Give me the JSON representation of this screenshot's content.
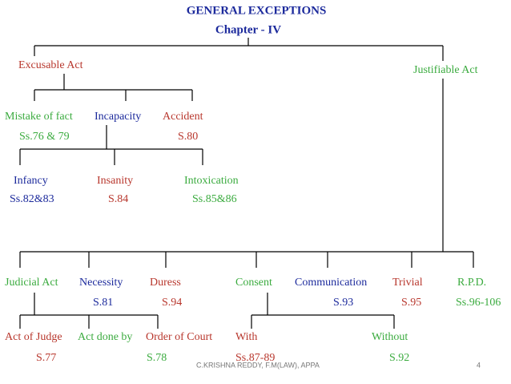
{
  "header": {
    "title": "GENERAL EXCEPTIONS",
    "subtitle": "Chapter - IV"
  },
  "nodes": [
    {
      "label": "Excusable Act"
    },
    {
      "label": "Justifiable Act"
    },
    {
      "label": "Mistake of fact",
      "section": "Ss.76 & 79"
    },
    {
      "label": "Incapacity"
    },
    {
      "label": "Accident",
      "section": "S.80"
    },
    {
      "label": "Infancy",
      "section": "Ss.82&83"
    },
    {
      "label": "Insanity",
      "section": "S.84"
    },
    {
      "label": "Intoxication",
      "section": "Ss.85&86"
    },
    {
      "label": "Judicial Act"
    },
    {
      "label": "Necessity",
      "section": "S.81"
    },
    {
      "label": "Duress",
      "section": "S.94"
    },
    {
      "label": "Consent"
    },
    {
      "label": "Communication",
      "section": "S.93"
    },
    {
      "label": "Trivial",
      "section": "S.95"
    },
    {
      "label": "R.P.D.",
      "section": "Ss.96-106"
    },
    {
      "label": "Act of Judge",
      "section": "S.77"
    },
    {
      "label": "Act done by",
      "section": "S.78"
    },
    {
      "label": "Order of Court"
    },
    {
      "label": "With",
      "section": "Ss.87-89"
    },
    {
      "label": "Without",
      "section": "S.92"
    }
  ],
  "footer": {
    "author": "C.KRISHNA REDDY, F.M(LAW), APPA",
    "page": "4"
  }
}
